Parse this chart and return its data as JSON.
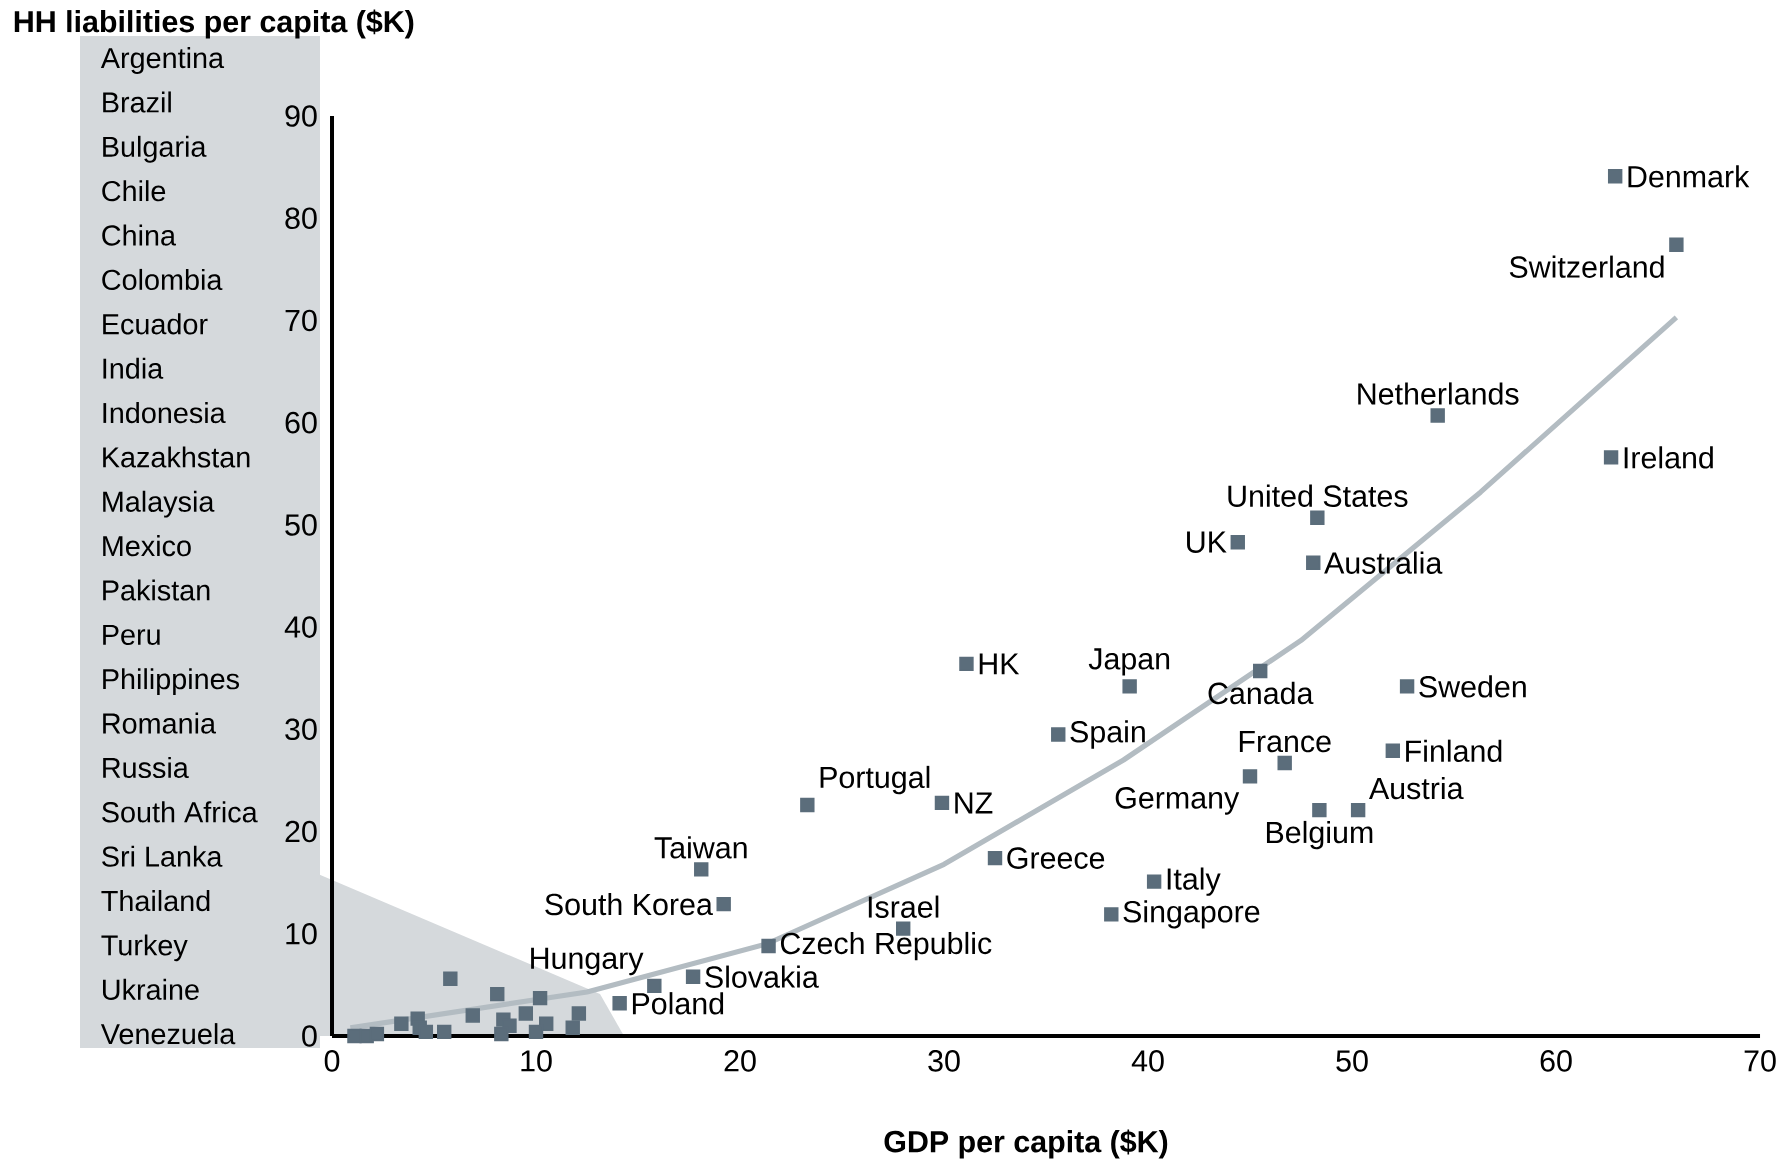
{
  "chart_data": {
    "type": "scatter",
    "marker": "square",
    "xlabel": "GDP per capita ($K)",
    "ylabel": "HH liabilities per capita ($K)",
    "xlim": [
      0,
      70
    ],
    "ylim": [
      0,
      90
    ],
    "xticks": [
      0,
      10,
      20,
      30,
      40,
      50,
      60,
      70
    ],
    "yticks": [
      0,
      10,
      20,
      30,
      40,
      50,
      60,
      70,
      80,
      90
    ],
    "annotations": [
      "Argentina",
      "Brazil",
      "Bulgaria",
      "Chile",
      "China",
      "Colombia",
      "Ecuador",
      "India",
      "Indonesia",
      "Kazakhstan",
      "Malaysia",
      "Mexico",
      "Pakistan",
      "Peru",
      "Philippines",
      "Romania",
      "Russia",
      "South Africa",
      "Sri Lanka",
      "Thailand",
      "Turkey",
      "Ukraine",
      "Venezuela"
    ],
    "series": [
      {
        "name": "Denmark",
        "color": "#5b6d7b",
        "x": [
          62.9
        ],
        "values": [
          84.1
        ]
      },
      {
        "name": "Switzerland",
        "color": "#5b6d7b",
        "x": [
          65.9
        ],
        "values": [
          77.4
        ]
      },
      {
        "name": "Netherlands",
        "color": "#5b6d7b",
        "x": [
          54.2
        ],
        "values": [
          60.7
        ]
      },
      {
        "name": "Ireland",
        "color": "#5b6d7b",
        "x": [
          62.7
        ],
        "values": [
          56.6
        ]
      },
      {
        "name": "United States",
        "color": "#5b6d7b",
        "x": [
          48.3
        ],
        "values": [
          50.7
        ]
      },
      {
        "name": "UK",
        "color": "#5b6d7b",
        "x": [
          44.4
        ],
        "values": [
          48.3
        ]
      },
      {
        "name": "Australia",
        "color": "#5b6d7b",
        "x": [
          48.1
        ],
        "values": [
          46.3
        ]
      },
      {
        "name": "HK",
        "color": "#5b6d7b",
        "x": [
          31.1
        ],
        "values": [
          36.4
        ]
      },
      {
        "name": "Japan",
        "color": "#5b6d7b",
        "x": [
          39.1
        ],
        "values": [
          34.2
        ]
      },
      {
        "name": "Canada",
        "color": "#5b6d7b",
        "x": [
          45.5
        ],
        "values": [
          35.7
        ]
      },
      {
        "name": "Sweden",
        "color": "#5b6d7b",
        "x": [
          52.7
        ],
        "values": [
          34.2
        ]
      },
      {
        "name": "Spain",
        "color": "#5b6d7b",
        "x": [
          35.6
        ],
        "values": [
          29.5
        ]
      },
      {
        "name": "France",
        "color": "#5b6d7b",
        "x": [
          46.7
        ],
        "values": [
          26.7
        ]
      },
      {
        "name": "Finland",
        "color": "#5b6d7b",
        "x": [
          52.0
        ],
        "values": [
          27.9
        ]
      },
      {
        "name": "Germany",
        "color": "#5b6d7b",
        "x": [
          45.0
        ],
        "values": [
          25.4
        ]
      },
      {
        "name": "Portugal",
        "color": "#5b6d7b",
        "x": [
          23.3
        ],
        "values": [
          22.6
        ]
      },
      {
        "name": "NZ",
        "color": "#5b6d7b",
        "x": [
          29.9
        ],
        "values": [
          22.8
        ]
      },
      {
        "name": "Austria",
        "color": "#5b6d7b",
        "x": [
          50.3
        ],
        "values": [
          22.1
        ]
      },
      {
        "name": "Belgium",
        "color": "#5b6d7b",
        "x": [
          48.4
        ],
        "values": [
          22.1
        ]
      },
      {
        "name": "Greece",
        "color": "#5b6d7b",
        "x": [
          32.5
        ],
        "values": [
          17.4
        ]
      },
      {
        "name": "Taiwan",
        "color": "#5b6d7b",
        "x": [
          18.1
        ],
        "values": [
          16.3
        ]
      },
      {
        "name": "Italy",
        "color": "#5b6d7b",
        "x": [
          40.3
        ],
        "values": [
          15.1
        ]
      },
      {
        "name": "South Korea",
        "color": "#5b6d7b",
        "x": [
          19.2
        ],
        "values": [
          12.9
        ]
      },
      {
        "name": "Singapore",
        "color": "#5b6d7b",
        "x": [
          38.2
        ],
        "values": [
          11.9
        ]
      },
      {
        "name": "Israel",
        "color": "#5b6d7b",
        "x": [
          28.0
        ],
        "values": [
          10.5
        ]
      },
      {
        "name": "Czech Republic",
        "color": "#5b6d7b",
        "x": [
          21.4
        ],
        "values": [
          8.8
        ]
      },
      {
        "name": "Slovakia",
        "color": "#5b6d7b",
        "x": [
          17.7
        ],
        "values": [
          5.8
        ]
      },
      {
        "name": "Hungary",
        "color": "#5b6d7b",
        "x": [
          15.8
        ],
        "values": [
          4.9
        ]
      },
      {
        "name": "Poland",
        "color": "#5b6d7b",
        "x": [
          14.1
        ],
        "values": [
          3.2
        ]
      },
      {
        "color": "#5b6d7b",
        "x": [
          1.1,
          1.7,
          2.2,
          3.4,
          4.2,
          4.3,
          4.6,
          5.5,
          5.8,
          6.9,
          8.1,
          8.4,
          8.7,
          8.3,
          9.5,
          10.2,
          10.5,
          10.0,
          12.1,
          11.8
        ],
        "values": [
          0,
          0,
          0.2,
          1.2,
          1.7,
          0.8,
          0.4,
          0.4,
          5.6,
          2.0,
          4.1,
          1.6,
          1.0,
          0.2,
          2.2,
          3.7,
          1.2,
          0.4,
          2.2,
          0.8
        ]
      },
      {
        "type": "line",
        "marker": "none",
        "color": "#b3bcc2",
        "x": [
          0.9,
          12.5,
          21.3,
          30.0,
          38.8,
          47.5,
          56.3,
          65.9
        ],
        "values": [
          0.8,
          4.3,
          9.0,
          16.8,
          27.0,
          38.7,
          53.2,
          70.3
        ]
      }
    ]
  }
}
